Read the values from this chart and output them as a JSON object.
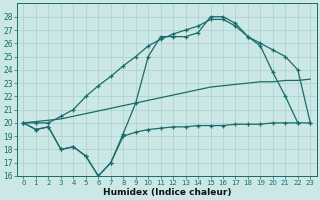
{
  "xlabel": "Humidex (Indice chaleur)",
  "bg_color": "#cce8e6",
  "grid_color": "#aacfcd",
  "line_color": "#1a6b6b",
  "xlim": [
    -0.5,
    23.5
  ],
  "ylim": [
    16,
    29
  ],
  "yticks": [
    16,
    17,
    18,
    19,
    20,
    21,
    22,
    23,
    24,
    25,
    26,
    27,
    28
  ],
  "xticks": [
    0,
    1,
    2,
    3,
    4,
    5,
    6,
    7,
    8,
    9,
    10,
    11,
    12,
    13,
    14,
    15,
    16,
    17,
    18,
    19,
    20,
    21,
    22,
    23
  ],
  "line1_x": [
    0,
    1,
    2,
    3,
    4,
    5,
    6,
    7,
    8,
    9,
    10,
    11,
    12,
    13,
    14,
    15,
    16,
    17,
    18,
    19,
    20,
    21,
    22,
    23
  ],
  "line1_y": [
    20.0,
    20.0,
    20.0,
    20.5,
    21.0,
    22.0,
    22.8,
    23.5,
    24.3,
    25.0,
    25.8,
    26.3,
    26.7,
    27.0,
    27.3,
    27.8,
    27.8,
    27.3,
    26.5,
    26.0,
    25.5,
    25.0,
    24.0,
    20.0
  ],
  "line2_x": [
    0,
    1,
    2,
    3,
    4,
    5,
    6,
    7,
    8,
    9,
    10,
    11,
    12,
    13,
    14,
    15,
    16,
    17,
    18,
    19,
    20,
    21,
    22
  ],
  "line2_y": [
    20.0,
    19.5,
    19.7,
    18.0,
    18.2,
    17.5,
    16.0,
    17.0,
    19.2,
    21.5,
    25.0,
    26.5,
    26.5,
    26.5,
    26.8,
    28.0,
    28.0,
    27.5,
    26.5,
    25.8,
    23.8,
    22.0,
    20.0
  ],
  "line3_x": [
    0,
    1,
    2,
    3,
    4,
    5,
    6,
    7,
    8,
    9,
    10,
    11,
    12,
    13,
    14,
    15,
    16,
    17,
    18,
    19,
    20,
    21,
    22,
    23
  ],
  "line3_y": [
    20.0,
    20.1,
    20.2,
    20.3,
    20.5,
    20.7,
    20.9,
    21.1,
    21.3,
    21.5,
    21.7,
    21.9,
    22.1,
    22.3,
    22.5,
    22.7,
    22.8,
    22.9,
    23.0,
    23.1,
    23.1,
    23.2,
    23.2,
    23.3
  ],
  "line4_x": [
    0,
    1,
    2,
    3,
    4,
    5,
    6,
    7,
    8,
    9,
    10,
    11,
    12,
    13,
    14,
    15,
    16,
    17,
    18,
    19,
    20,
    21,
    22,
    23
  ],
  "line4_y": [
    20.0,
    19.5,
    19.7,
    18.0,
    18.2,
    17.5,
    16.0,
    17.0,
    19.0,
    19.3,
    19.5,
    19.6,
    19.7,
    19.7,
    19.8,
    19.8,
    19.8,
    19.9,
    19.9,
    19.9,
    20.0,
    20.0,
    20.0,
    20.0
  ]
}
